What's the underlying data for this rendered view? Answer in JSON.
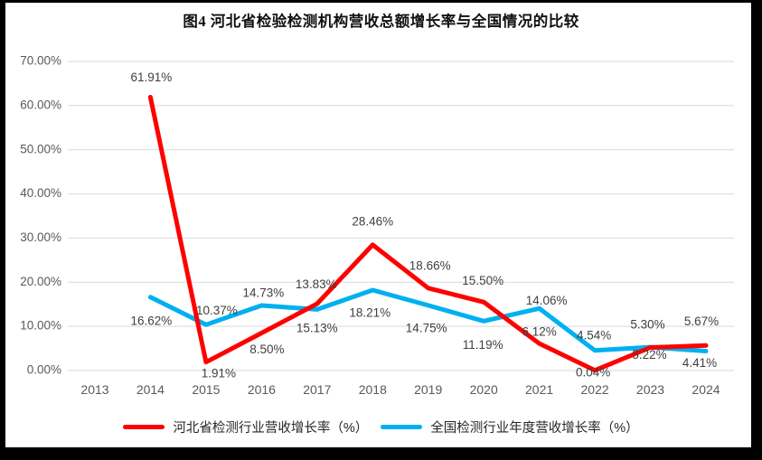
{
  "title": "图4 河北省检验检测机构营收总额增长率与全国情况的比较",
  "colors": {
    "grid": "#D9D9D9",
    "axis_text": "#595959",
    "data_label_text": "#3F3F3F",
    "frame": "#000000",
    "background": "#FFFFFF",
    "hebei_red": "#FF0000",
    "national_blue": "#00B0F0"
  },
  "chart_data": {
    "type": "line",
    "title": "图4 河北省检验检测机构营收总额增长率与全国情况的比较",
    "categories": [
      "2013",
      "2014",
      "2015",
      "2016",
      "2017",
      "2018",
      "2019",
      "2020",
      "2021",
      "2022",
      "2023",
      "2024"
    ],
    "xlabel": "",
    "ylabel": "",
    "y_axis": {
      "min": 0,
      "max": 70,
      "step": 10,
      "tick_labels": [
        "0.00%",
        "10.00%",
        "20.00%",
        "30.00%",
        "40.00%",
        "50.00%",
        "60.00%",
        "70.00%"
      ]
    },
    "grid": true,
    "legend_position": "bottom",
    "series": [
      {
        "name": "河北省检测行业营收增长率（%）",
        "color": "#FF0000",
        "points": [
          {
            "year": 2014,
            "value": 61.91,
            "label": "61.91%",
            "dx": 1,
            "dy": -21
          },
          {
            "year": 2015,
            "value": 1.91,
            "label": "1.91%",
            "dx": 14,
            "dy": 13
          },
          {
            "year": 2016,
            "value": 8.5,
            "label": "8.50%",
            "dx": 6,
            "dy": 19
          },
          {
            "year": 2017,
            "value": 15.13,
            "label": "15.13%",
            "dx": 0,
            "dy": 28
          },
          {
            "year": 2018,
            "value": 28.46,
            "label": "28.46%",
            "dx": 0,
            "dy": -25
          },
          {
            "year": 2019,
            "value": 18.66,
            "label": "18.66%",
            "dx": 2,
            "dy": -24
          },
          {
            "year": 2020,
            "value": 15.5,
            "label": "15.50%",
            "dx": -1,
            "dy": -23
          },
          {
            "year": 2021,
            "value": 6.12,
            "label": "6.12%",
            "dx": 0,
            "dy": -12
          },
          {
            "year": 2022,
            "value": 0.04,
            "label": "0.04%",
            "dx": -2,
            "dy": 3
          },
          {
            "year": 2023,
            "value": 5.22,
            "label": "5.22%",
            "dx": -1,
            "dy": 9
          },
          {
            "year": 2024,
            "value": 5.67,
            "label": "5.67%",
            "dx": -5,
            "dy": -26
          }
        ]
      },
      {
        "name": "全国检测行业年度营收增长率（%）",
        "color": "#00B0F0",
        "points": [
          {
            "year": 2014,
            "value": 16.62,
            "label": "16.62%",
            "dx": 1,
            "dy": 27
          },
          {
            "year": 2015,
            "value": 10.37,
            "label": "10.37%",
            "dx": 12,
            "dy": -15
          },
          {
            "year": 2016,
            "value": 14.73,
            "label": "14.73%",
            "dx": 2,
            "dy": -13
          },
          {
            "year": 2017,
            "value": 13.83,
            "label": "13.83%",
            "dx": -1,
            "dy": -27
          },
          {
            "year": 2018,
            "value": 18.21,
            "label": "18.21%",
            "dx": -3,
            "dy": 26
          },
          {
            "year": 2019,
            "value": 14.75,
            "label": "14.75%",
            "dx": -2,
            "dy": 26
          },
          {
            "year": 2020,
            "value": 11.19,
            "label": "11.19%",
            "dx": -1,
            "dy": 27
          },
          {
            "year": 2021,
            "value": 14.06,
            "label": "14.06%",
            "dx": 8,
            "dy": -8
          },
          {
            "year": 2022,
            "value": 4.54,
            "label": "4.54%",
            "dx": -1,
            "dy": -16
          },
          {
            "year": 2023,
            "value": 5.3,
            "label": "5.30%",
            "dx": -3,
            "dy": -24
          },
          {
            "year": 2024,
            "value": 4.41,
            "label": "4.41%",
            "dx": -7,
            "dy": 14
          }
        ]
      }
    ]
  }
}
